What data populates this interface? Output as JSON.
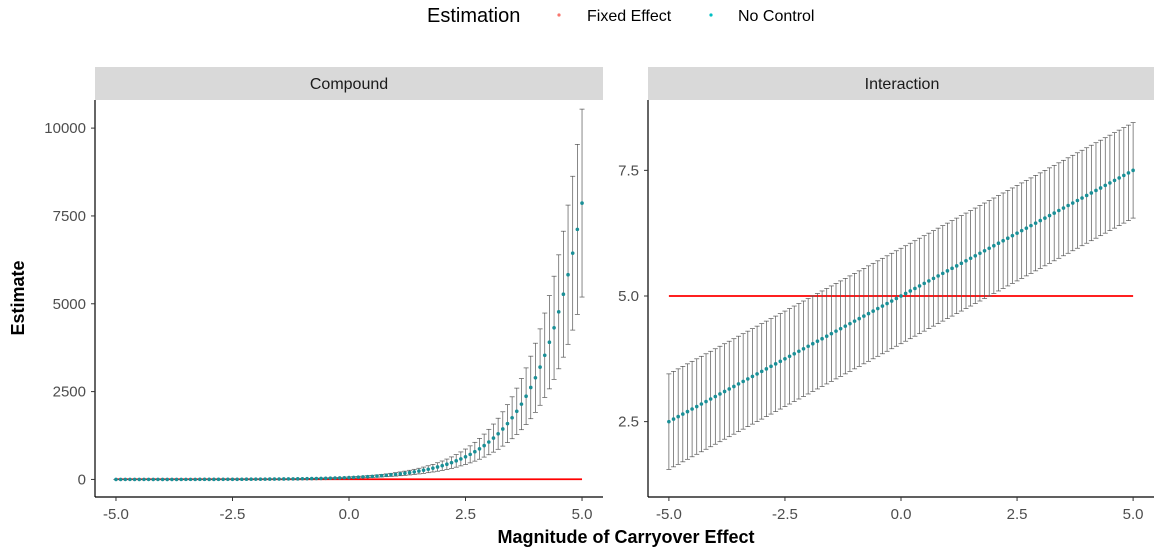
{
  "legend": {
    "title": "Estimation",
    "items": [
      {
        "label": "Fixed Effect",
        "color": "#F8766D"
      },
      {
        "label": "No Control",
        "color": "#00BFC4"
      }
    ]
  },
  "axes": {
    "xlabel": "Magnitude of Carryover Effect",
    "ylabel": "Estimate"
  },
  "colors": {
    "reference_line": "#FF0000",
    "errorbar": "#555555",
    "strip": "#D9D9D9",
    "point": "#1A8F96"
  },
  "chart_data": [
    {
      "type": "scatter",
      "facet": "Compound",
      "title": "Compound",
      "x_range": [
        -5.0,
        5.0
      ],
      "x_step": 0.1,
      "xlim": [
        -5.45,
        5.45
      ],
      "ylim": [
        -500,
        10800
      ],
      "xticks": [
        -5.0,
        -2.5,
        0.0,
        2.5,
        5.0
      ],
      "xtick_labels": [
        "-5.0",
        "-2.5",
        "0.0",
        "2.5",
        "5.0"
      ],
      "yticks": [
        0,
        2500,
        5000,
        7500,
        10000
      ],
      "ytick_labels": [
        "0",
        "2500",
        "5000",
        "7500",
        "10000"
      ],
      "reference_y": 5,
      "estimate_model": {
        "form": "exponential",
        "a": 53,
        "b": 1.0
      },
      "error_model": {
        "form": "relative",
        "fraction": 0.34
      },
      "series": [
        {
          "name": "Fixed Effect"
        },
        {
          "name": "No Control"
        }
      ]
    },
    {
      "type": "scatter",
      "facet": "Interaction",
      "title": "Interaction",
      "x_range": [
        -5.0,
        5.0
      ],
      "x_step": 0.1,
      "xlim": [
        -5.45,
        5.45
      ],
      "ylim": [
        1.0,
        8.9
      ],
      "xticks": [
        -5.0,
        -2.5,
        0.0,
        2.5,
        5.0
      ],
      "xtick_labels": [
        "-5.0",
        "-2.5",
        "0.0",
        "2.5",
        "5.0"
      ],
      "yticks": [
        2.5,
        5.0,
        7.5
      ],
      "ytick_labels": [
        "2.5",
        "5.0",
        "7.5"
      ],
      "reference_y": 5,
      "estimate_model": {
        "form": "linear",
        "intercept": 5.0,
        "slope": 0.5
      },
      "error_model": {
        "form": "constant",
        "halfwidth": 0.95
      },
      "series": [
        {
          "name": "Fixed Effect"
        },
        {
          "name": "No Control"
        }
      ]
    }
  ]
}
